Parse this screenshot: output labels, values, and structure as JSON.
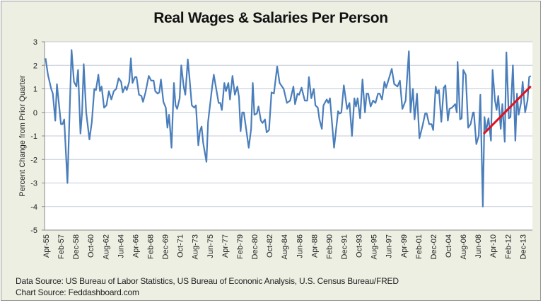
{
  "chart_data": {
    "type": "line",
    "title": "Real Wages & Salaries Per Person",
    "xlabel": "",
    "ylabel": "Percent Change from Prior Quarter",
    "ylim": [
      -5,
      3
    ],
    "yticks": [
      3,
      2,
      1,
      0,
      -1,
      -2,
      -3,
      -4,
      -5
    ],
    "xlim": [
      1955.08,
      2015.1
    ],
    "xtick_labels": [
      "Apr-55",
      "Feb-57",
      "Dec-58",
      "Oct-60",
      "Aug-62",
      "Jun-64",
      "Apr-66",
      "Feb-68",
      "Dec-69",
      "Oct-71",
      "Aug-73",
      "Jun-75",
      "Apr-77",
      "Feb-79",
      "Dec-80",
      "Oct-82",
      "Aug-84",
      "Jun-86",
      "Apr-88",
      "Feb-90",
      "Dec-91",
      "Oct-93",
      "Aug-95",
      "Jun-97",
      "Apr-99",
      "Feb-01",
      "Dec-02",
      "Oct-04",
      "Aug-06",
      "Jun-08",
      "Apr-10",
      "Feb-12",
      "Dec-13"
    ],
    "grid": "horizontal",
    "legend": "none",
    "series": [
      {
        "color": "#4a7ebb",
        "points": [
          [
            1955.2,
            2.3
          ],
          [
            1955.5,
            1.6
          ],
          [
            1955.9,
            1.0
          ],
          [
            1956.1,
            0.8
          ],
          [
            1956.4,
            -0.35
          ],
          [
            1956.6,
            1.2
          ],
          [
            1956.9,
            0.2
          ],
          [
            1957.1,
            -0.5
          ],
          [
            1957.3,
            -0.5
          ],
          [
            1957.5,
            -0.3
          ],
          [
            1957.9,
            -3.0
          ],
          [
            1958.4,
            2.65
          ],
          [
            1958.7,
            1.3
          ],
          [
            1959.0,
            1.1
          ],
          [
            1959.2,
            1.8
          ],
          [
            1959.5,
            -0.9
          ],
          [
            1959.7,
            0.0
          ],
          [
            1959.9,
            2.05
          ],
          [
            1960.2,
            0.0
          ],
          [
            1960.6,
            -1.15
          ],
          [
            1960.9,
            -0.4
          ],
          [
            1961.2,
            1.0
          ],
          [
            1961.4,
            0.95
          ],
          [
            1961.7,
            1.6
          ],
          [
            1961.9,
            0.9
          ],
          [
            1962.1,
            1.1
          ],
          [
            1962.4,
            0.2
          ],
          [
            1962.7,
            0.3
          ],
          [
            1963.0,
            0.9
          ],
          [
            1963.3,
            0.55
          ],
          [
            1963.6,
            0.9
          ],
          [
            1963.9,
            1.0
          ],
          [
            1964.2,
            1.45
          ],
          [
            1964.5,
            1.3
          ],
          [
            1964.7,
            0.85
          ],
          [
            1965.0,
            1.1
          ],
          [
            1965.2,
            0.95
          ],
          [
            1965.5,
            1.3
          ],
          [
            1965.7,
            2.3
          ],
          [
            1965.9,
            1.25
          ],
          [
            1966.2,
            1.5
          ],
          [
            1966.4,
            1.5
          ],
          [
            1966.7,
            0.75
          ],
          [
            1967.0,
            0.7
          ],
          [
            1967.2,
            0.45
          ],
          [
            1967.5,
            0.85
          ],
          [
            1967.9,
            1.55
          ],
          [
            1968.2,
            1.35
          ],
          [
            1968.5,
            1.35
          ],
          [
            1968.7,
            0.9
          ],
          [
            1969.0,
            0.8
          ],
          [
            1969.2,
            0.85
          ],
          [
            1969.4,
            1.4
          ],
          [
            1969.7,
            0.45
          ],
          [
            1970.0,
            0.2
          ],
          [
            1970.2,
            -0.65
          ],
          [
            1970.4,
            -0.1
          ],
          [
            1970.7,
            -1.5
          ],
          [
            1971.0,
            1.25
          ],
          [
            1971.2,
            0.3
          ],
          [
            1971.4,
            0.15
          ],
          [
            1971.7,
            0.6
          ],
          [
            1971.9,
            2.0
          ],
          [
            1972.2,
            1.1
          ],
          [
            1972.4,
            0.75
          ],
          [
            1972.7,
            2.25
          ],
          [
            1972.9,
            1.5
          ],
          [
            1973.2,
            0.3
          ],
          [
            1973.5,
            0.2
          ],
          [
            1973.7,
            0.3
          ],
          [
            1974.0,
            -1.4
          ],
          [
            1974.2,
            -0.8
          ],
          [
            1974.4,
            -0.6
          ],
          [
            1974.6,
            -1.3
          ],
          [
            1975.0,
            -2.1
          ],
          [
            1975.2,
            -0.4
          ],
          [
            1975.5,
            0.5
          ],
          [
            1975.7,
            1.1
          ],
          [
            1975.9,
            1.6
          ],
          [
            1976.2,
            1.0
          ],
          [
            1976.5,
            0.4
          ],
          [
            1976.7,
            0.4
          ],
          [
            1976.9,
            0.1
          ],
          [
            1977.2,
            1.25
          ],
          [
            1977.4,
            0.9
          ],
          [
            1977.7,
            1.25
          ],
          [
            1977.9,
            0.55
          ],
          [
            1978.2,
            1.55
          ],
          [
            1978.5,
            0.75
          ],
          [
            1978.8,
            1.1
          ],
          [
            1979.0,
            0.65
          ],
          [
            1979.2,
            -0.8
          ],
          [
            1979.4,
            0.0
          ],
          [
            1979.6,
            0.0
          ],
          [
            1980.0,
            -1.0
          ],
          [
            1980.2,
            -1.5
          ],
          [
            1980.5,
            -0.7
          ],
          [
            1980.7,
            1.25
          ],
          [
            1980.9,
            -0.1
          ],
          [
            1981.2,
            -0.05
          ],
          [
            1981.4,
            0.25
          ],
          [
            1981.7,
            -0.35
          ],
          [
            1981.9,
            -0.45
          ],
          [
            1982.2,
            -0.3
          ],
          [
            1982.4,
            -0.85
          ],
          [
            1982.7,
            -0.75
          ],
          [
            1983.0,
            0.85
          ],
          [
            1983.3,
            0.8
          ],
          [
            1983.7,
            1.95
          ],
          [
            1984.0,
            1.25
          ],
          [
            1984.5,
            1.0
          ],
          [
            1984.9,
            0.4
          ],
          [
            1985.3,
            0.5
          ],
          [
            1985.7,
            1.1
          ],
          [
            1985.9,
            0.35
          ],
          [
            1986.2,
            0.8
          ],
          [
            1986.4,
            0.75
          ],
          [
            1986.7,
            1.05
          ],
          [
            1987.1,
            0.5
          ],
          [
            1987.4,
            0.5
          ],
          [
            1987.6,
            1.5
          ],
          [
            1987.9,
            0.6
          ],
          [
            1988.2,
            1.0
          ],
          [
            1988.4,
            0.3
          ],
          [
            1988.7,
            0.2
          ],
          [
            1988.9,
            -0.3
          ],
          [
            1989.2,
            -0.7
          ],
          [
            1989.4,
            0.3
          ],
          [
            1989.8,
            0.55
          ],
          [
            1990.0,
            0.4
          ],
          [
            1990.2,
            0.6
          ],
          [
            1990.7,
            -1.5
          ],
          [
            1991.2,
            0.05
          ],
          [
            1991.4,
            -0.05
          ],
          [
            1991.6,
            0.0
          ],
          [
            1991.9,
            1.15
          ],
          [
            1992.3,
            0.15
          ],
          [
            1992.6,
            0.4
          ],
          [
            1992.9,
            -1.0
          ],
          [
            1993.2,
            0.6
          ],
          [
            1993.4,
            0.25
          ],
          [
            1993.6,
            0.6
          ],
          [
            1993.9,
            -0.25
          ],
          [
            1994.2,
            1.4
          ],
          [
            1994.5,
            0.0
          ],
          [
            1994.7,
            0.8
          ],
          [
            1994.9,
            0.8
          ],
          [
            1995.2,
            0.25
          ],
          [
            1995.5,
            0.5
          ],
          [
            1995.8,
            0.4
          ],
          [
            1996.1,
            0.8
          ],
          [
            1996.3,
            0.8
          ],
          [
            1996.6,
            0.55
          ],
          [
            1996.9,
            1.3
          ],
          [
            1997.1,
            1.05
          ],
          [
            1997.5,
            1.5
          ],
          [
            1997.8,
            1.85
          ],
          [
            1998.1,
            1.2
          ],
          [
            1998.5,
            1.1
          ],
          [
            1998.8,
            1.35
          ],
          [
            1999.1,
            0.15
          ],
          [
            1999.5,
            0.5
          ],
          [
            1999.9,
            2.6
          ],
          [
            2000.1,
            0.0
          ],
          [
            2000.4,
            1.0
          ],
          [
            2000.6,
            -0.3
          ],
          [
            2000.9,
            0.8
          ],
          [
            2001.2,
            -1.1
          ],
          [
            2001.6,
            -0.55
          ],
          [
            2001.9,
            -0.05
          ],
          [
            2002.1,
            -0.05
          ],
          [
            2002.4,
            -0.5
          ],
          [
            2002.7,
            -0.5
          ],
          [
            2002.9,
            -0.75
          ],
          [
            2003.2,
            1.1
          ],
          [
            2003.4,
            0.8
          ],
          [
            2003.6,
            0.95
          ],
          [
            2003.9,
            -0.4
          ],
          [
            2004.2,
            1.05
          ],
          [
            2004.4,
            1.15
          ],
          [
            2004.7,
            -0.35
          ],
          [
            2004.9,
            0.15
          ],
          [
            2005.2,
            0.2
          ],
          [
            2005.6,
            0.35
          ],
          [
            2005.8,
            0.0
          ],
          [
            2005.9,
            2.15
          ],
          [
            2006.2,
            -0.3
          ],
          [
            2006.4,
            -0.25
          ],
          [
            2006.6,
            1.8
          ],
          [
            2006.9,
            1.6
          ],
          [
            2007.2,
            -0.65
          ],
          [
            2007.5,
            -0.5
          ],
          [
            2007.8,
            0.0
          ],
          [
            2007.9,
            0.0
          ],
          [
            2008.2,
            -1.35
          ],
          [
            2008.5,
            -1.0
          ],
          [
            2008.7,
            0.75
          ],
          [
            2009.0,
            -4.0
          ],
          [
            2009.2,
            -0.2
          ],
          [
            2009.4,
            -0.8
          ],
          [
            2009.7,
            -0.25
          ],
          [
            2010.0,
            -1.2
          ],
          [
            2010.2,
            1.8
          ],
          [
            2010.5,
            0.5
          ],
          [
            2010.7,
            0.1
          ],
          [
            2010.9,
            0.7
          ],
          [
            2011.2,
            -0.7
          ],
          [
            2011.4,
            0.35
          ],
          [
            2011.7,
            -1.25
          ],
          [
            2011.9,
            2.55
          ],
          [
            2012.2,
            -0.25
          ],
          [
            2012.4,
            -0.2
          ],
          [
            2012.7,
            2.0
          ],
          [
            2013.0,
            -1.2
          ],
          [
            2013.2,
            0.8
          ],
          [
            2013.4,
            -0.1
          ],
          [
            2013.7,
            0.4
          ],
          [
            2013.9,
            1.3
          ],
          [
            2014.2,
            0.0
          ],
          [
            2014.5,
            0.5
          ],
          [
            2014.7,
            1.5
          ],
          [
            2014.9,
            1.55
          ]
        ]
      }
    ],
    "trendline": {
      "color": "#e0121b",
      "points": [
        [
          2009.1,
          -0.91
        ],
        [
          2014.9,
          1.11
        ]
      ]
    }
  },
  "footer": {
    "data_source": "Data Source: US Bureau of Labor Statistics, US Bureau of Econonic Analysis, U.S. Census Bureau/FRED",
    "chart_source": "Chart Source: Feddashboard.com"
  }
}
